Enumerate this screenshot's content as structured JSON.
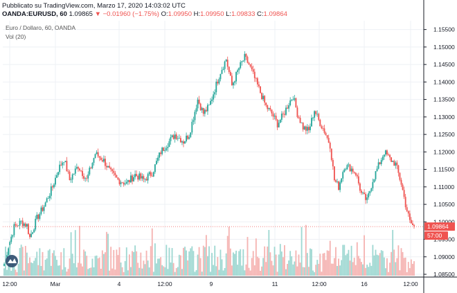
{
  "header": {
    "published": "Pubblicato su TradingView.com, Marzo 17, 2020 14:03:02 UTC",
    "symbol": "OANDA:EURUSD, 60",
    "last": "1.09865",
    "change": "▼ −0.01960 (−1.75%)",
    "o_label": "O:",
    "o_value": "1.09950",
    "h_label": "H:",
    "h_value": "1.09950",
    "l_label": "L:",
    "l_value": "1.09833",
    "c_label": "C:",
    "c_value": "1.09864"
  },
  "legend": {
    "series_title": "Euro / Dollaro, 60, OANDA",
    "volume_title": "Vol (20)"
  },
  "colors": {
    "up": "#26a69a",
    "down": "#ef5350",
    "vol_up": "#9fd8d2",
    "vol_down": "#f5b4b2",
    "grid": "#eef0f4",
    "axis": "#131722",
    "price_label": "#ef5350"
  },
  "icons": {
    "watermark": "tradingview-logo-icon"
  },
  "chart_data": {
    "type": "candlestick",
    "title": "Euro / Dollaro, 60, OANDA",
    "y_axis": {
      "ticks": [
        "1.15500",
        "1.15000",
        "1.14500",
        "1.14000",
        "1.13500",
        "1.13000",
        "1.12500",
        "1.12000",
        "1.11500",
        "1.11000",
        "1.10500",
        "1.10000",
        "1.09500",
        "1.09000",
        "1.08500"
      ],
      "range": [
        1.085,
        1.1575
      ]
    },
    "x_axis": {
      "ticks": [
        "12:00",
        "Mar",
        "4",
        "12:00",
        "9",
        "11",
        "12:00",
        "16",
        "12:00"
      ]
    },
    "last_price_label": "1.09864",
    "last_volume_label": "57:00",
    "keypoints": [
      [
        0,
        1.088
      ],
      [
        3,
        1.093
      ],
      [
        7,
        1.0985
      ],
      [
        12,
        1.1
      ],
      [
        16,
        1.099
      ],
      [
        18,
        1.0955
      ],
      [
        23,
        1.101
      ],
      [
        28,
        1.1045
      ],
      [
        34,
        1.11
      ],
      [
        38,
        1.115
      ],
      [
        42,
        1.118
      ],
      [
        46,
        1.112
      ],
      [
        52,
        1.116
      ],
      [
        58,
        1.112
      ],
      [
        64,
        1.1195
      ],
      [
        70,
        1.1175
      ],
      [
        75,
        1.114
      ],
      [
        80,
        1.112
      ],
      [
        86,
        1.111
      ],
      [
        92,
        1.1135
      ],
      [
        98,
        1.112
      ],
      [
        104,
        1.114
      ],
      [
        110,
        1.12
      ],
      [
        116,
        1.123
      ],
      [
        120,
        1.125
      ],
      [
        126,
        1.123
      ],
      [
        130,
        1.125
      ],
      [
        136,
        1.135
      ],
      [
        140,
        1.131
      ],
      [
        144,
        1.133
      ],
      [
        148,
        1.138
      ],
      [
        152,
        1.143
      ],
      [
        156,
        1.1465
      ],
      [
        160,
        1.139
      ],
      [
        165,
        1.144
      ],
      [
        169,
        1.147
      ],
      [
        172,
        1.145
      ],
      [
        176,
        1.141
      ],
      [
        180,
        1.137
      ],
      [
        184,
        1.133
      ],
      [
        188,
        1.131
      ],
      [
        192,
        1.128
      ],
      [
        196,
        1.1305
      ],
      [
        200,
        1.134
      ],
      [
        203,
        1.136
      ],
      [
        206,
        1.131
      ],
      [
        210,
        1.127
      ],
      [
        214,
        1.126
      ],
      [
        218,
        1.132
      ],
      [
        221,
        1.129
      ],
      [
        225,
        1.126
      ],
      [
        229,
        1.122
      ],
      [
        232,
        1.112
      ],
      [
        235,
        1.11
      ],
      [
        239,
        1.116
      ],
      [
        243,
        1.1155
      ],
      [
        247,
        1.114
      ],
      [
        251,
        1.108
      ],
      [
        255,
        1.106
      ],
      [
        259,
        1.112
      ],
      [
        263,
        1.116
      ],
      [
        267,
        1.12
      ],
      [
        271,
        1.118
      ],
      [
        275,
        1.1165
      ],
      [
        279,
        1.111
      ],
      [
        282,
        1.105
      ],
      [
        285,
        1.1
      ],
      [
        288,
        1.0985
      ]
    ],
    "candle_count": 289
  }
}
